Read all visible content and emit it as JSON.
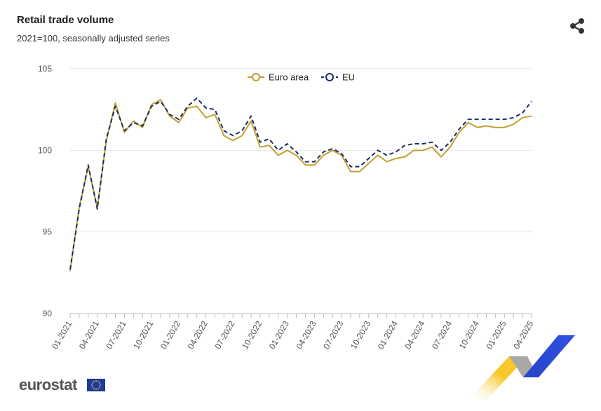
{
  "header": {
    "title": "Retail trade volume",
    "subtitle": "2021=100, seasonally adjusted series",
    "share_icon": "share-icon"
  },
  "footer": {
    "logo_text": "eurostat",
    "flag_icon": "eu-flag-icon"
  },
  "colors": {
    "euro_area": "#c3a02e",
    "eu": "#1a2b6b",
    "grid": "#e6e6e6",
    "axis": "#bbbbbb",
    "ribbon_yellow": "#f7c82b",
    "ribbon_blue": "#2743c9",
    "ribbon_grey": "#9a9a9a"
  },
  "chart_data": {
    "type": "line",
    "title": "Retail trade volume",
    "subtitle": "2021=100, seasonally adjusted series",
    "xlabel": "",
    "ylabel": "",
    "ylim": [
      90,
      105
    ],
    "yticks": [
      90,
      95,
      100,
      105
    ],
    "grid": true,
    "legend_position": "top-center",
    "xtick_labels": [
      "01-2021",
      "04-2021",
      "07-2021",
      "10-2021",
      "01-2022",
      "04-2022",
      "07-2022",
      "10-2022",
      "01-2023",
      "04-2023",
      "07-2023",
      "10-2023",
      "01-2024",
      "04-2024",
      "07-2024",
      "10-2024",
      "01-2025",
      "04-2025"
    ],
    "x": [
      "01-2021",
      "02-2021",
      "03-2021",
      "04-2021",
      "05-2021",
      "06-2021",
      "07-2021",
      "08-2021",
      "09-2021",
      "10-2021",
      "11-2021",
      "12-2021",
      "01-2022",
      "02-2022",
      "03-2022",
      "04-2022",
      "05-2022",
      "06-2022",
      "07-2022",
      "08-2022",
      "09-2022",
      "10-2022",
      "11-2022",
      "12-2022",
      "01-2023",
      "02-2023",
      "03-2023",
      "04-2023",
      "05-2023",
      "06-2023",
      "07-2023",
      "08-2023",
      "09-2023",
      "10-2023",
      "11-2023",
      "12-2023",
      "01-2024",
      "02-2024",
      "03-2024",
      "04-2024",
      "05-2024",
      "06-2024",
      "07-2024",
      "08-2024",
      "09-2024",
      "10-2024",
      "11-2024",
      "12-2024",
      "01-2025",
      "02-2025",
      "03-2025",
      "04-2025"
    ],
    "series": [
      {
        "name": "Euro area",
        "style": "solid",
        "values": [
          92.6,
          96.5,
          99.0,
          96.5,
          100.6,
          102.9,
          101.1,
          101.8,
          101.4,
          102.8,
          103.1,
          102.1,
          101.7,
          102.6,
          102.7,
          102.0,
          102.2,
          100.9,
          100.6,
          100.9,
          101.8,
          100.2,
          100.3,
          99.7,
          100.0,
          99.7,
          99.1,
          99.1,
          99.7,
          100.0,
          99.7,
          98.7,
          98.7,
          99.2,
          99.7,
          99.3,
          99.5,
          99.6,
          100.0,
          100.0,
          100.2,
          99.6,
          100.2,
          101.1,
          101.7,
          101.4,
          101.5,
          101.4,
          101.4,
          101.6,
          102.0,
          102.1
        ]
      },
      {
        "name": "EU",
        "style": "dashed",
        "values": [
          92.7,
          96.4,
          99.1,
          96.4,
          100.7,
          102.7,
          101.2,
          101.7,
          101.5,
          102.7,
          103.0,
          102.2,
          101.9,
          102.7,
          103.2,
          102.6,
          102.5,
          101.2,
          100.9,
          101.2,
          102.1,
          100.5,
          100.7,
          100.0,
          100.4,
          99.9,
          99.3,
          99.3,
          99.9,
          100.1,
          99.8,
          99.0,
          99.0,
          99.5,
          100.0,
          99.7,
          99.9,
          100.3,
          100.4,
          100.4,
          100.5,
          100.0,
          100.5,
          101.3,
          101.9,
          101.9,
          101.9,
          101.9,
          101.9,
          102.0,
          102.3,
          103.0
        ]
      }
    ]
  }
}
